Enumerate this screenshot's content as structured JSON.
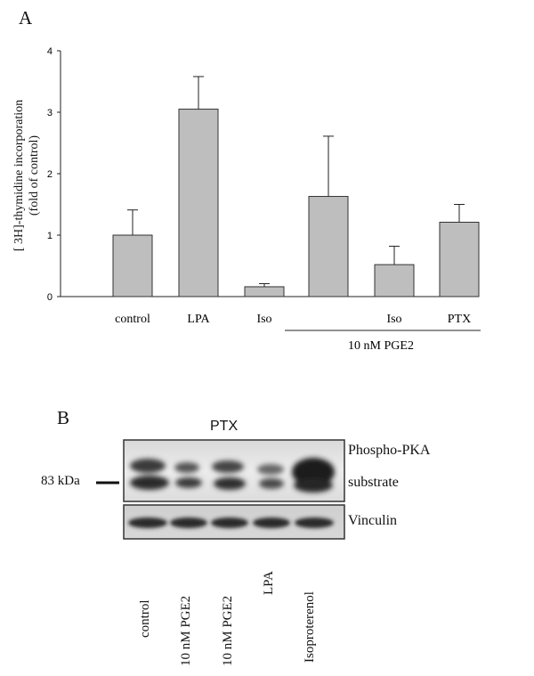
{
  "panel_a": {
    "letter": "A",
    "ylabel_line1": "[ 3H]-thymidine incorporation",
    "ylabel_line2": "(fold of control)",
    "group_label": "10 nM PGE2"
  },
  "chart_data": {
    "type": "bar",
    "categories": [
      "control",
      "LPA",
      "Iso",
      "",
      "Iso",
      "PTX"
    ],
    "values": [
      1.0,
      3.05,
      0.16,
      1.63,
      0.52,
      1.21
    ],
    "errors": [
      0.41,
      0.53,
      0.05,
      0.98,
      0.3,
      0.29
    ],
    "ylim": [
      0,
      4
    ],
    "yticks": [
      "0",
      "1",
      "2",
      "3",
      "4"
    ],
    "xlabel": "",
    "bar_color": "#bebebe",
    "grid": false,
    "group_bracket": {
      "label": "10 nM PGE2",
      "from_index": 3,
      "to_index": 5
    }
  },
  "panel_b": {
    "letter": "B",
    "ptx_label": "PTX",
    "size_marker": "83 kDa",
    "band1_label_line1": "Phospho-PKA",
    "band1_label_line2": "substrate",
    "band2_label": "Vinculin",
    "lanes": [
      "control",
      "10 nM PGE2",
      "10 nM PGE2",
      "LPA",
      "Isoproterenol"
    ]
  }
}
